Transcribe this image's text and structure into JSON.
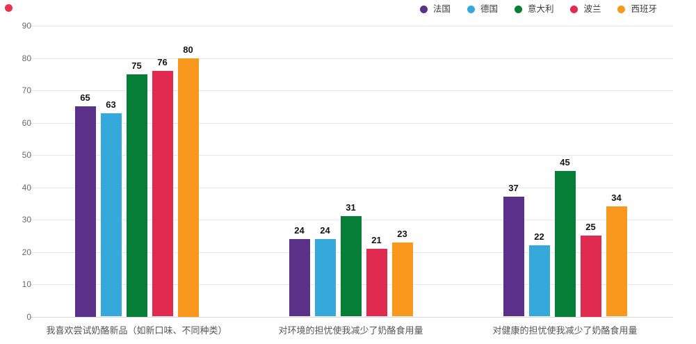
{
  "marker": {
    "name": "red-dot",
    "color": "#E8344D"
  },
  "colors": {
    "grid": "#E7E7E7",
    "baseline": "#D8D8D8",
    "axis_tick_label": "#6A6A6A",
    "category_label": "#555555",
    "value_label": "#141414",
    "legend_label": "#3D3D3D",
    "background": "#FFFFFF"
  },
  "chart_data": {
    "type": "bar",
    "title": "",
    "categories": [
      "我喜欢尝试奶酪新品（如新口味、不同种类）",
      "对环境的担忧使我减少了奶酪食用量",
      "对健康的担忧使我减少了奶酪食用量"
    ],
    "series": [
      {
        "name": "法国",
        "color": "#5B3089",
        "values": [
          65,
          24,
          37
        ]
      },
      {
        "name": "德国",
        "color": "#36A9DC",
        "values": [
          63,
          24,
          22
        ]
      },
      {
        "name": "意大利",
        "color": "#077E38",
        "values": [
          75,
          31,
          45
        ]
      },
      {
        "name": "波兰",
        "color": "#E12A4F",
        "values": [
          76,
          21,
          25
        ]
      },
      {
        "name": "西班牙",
        "color": "#F8981D",
        "values": [
          80,
          23,
          34
        ]
      }
    ],
    "ylim": [
      0,
      90
    ],
    "ytick_step": 10,
    "ytick_labels": [
      "0",
      "10",
      "20",
      "30",
      "40",
      "50",
      "60",
      "70",
      "80",
      "90"
    ],
    "grid": "horizontal",
    "legend_position": "top-right",
    "value_labels": true
  }
}
